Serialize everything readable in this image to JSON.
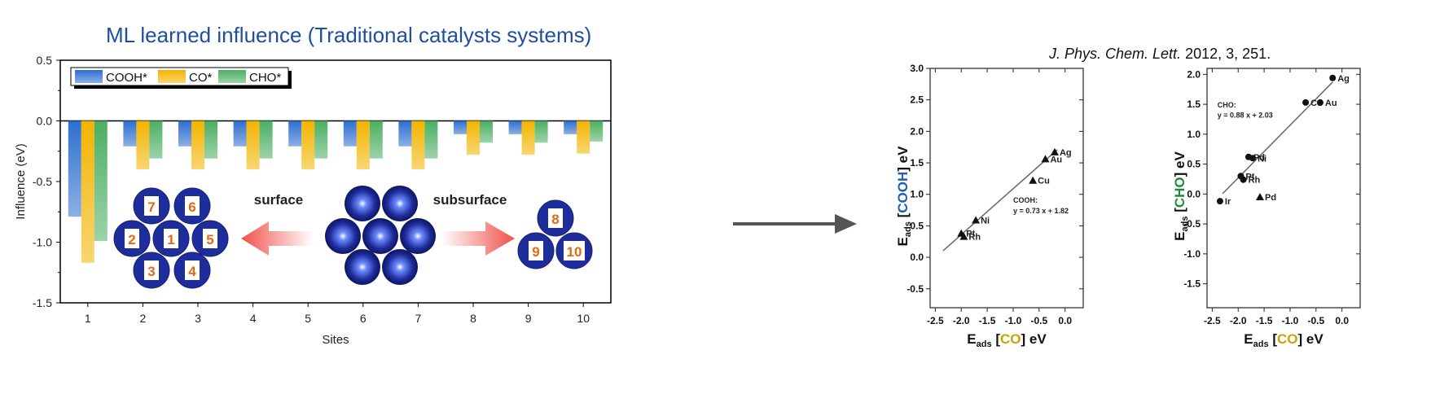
{
  "header": {
    "left_title": "ML learned influence (Traditional catalysts systems)",
    "reference_journal": "J. Phys. Chem. Lett.",
    "reference_details": " 2012, 3, 251."
  },
  "colors": {
    "cooh": "#2e6fcf",
    "co": "#f3b400",
    "cho": "#4caf63",
    "cooh_label": "#1f5fb5",
    "co_label": "#c8a400",
    "cho_label": "#1f8a3a",
    "arrow_red": "#f0504a",
    "sphere": "#1e2d9c",
    "site_number": "#e06a12"
  },
  "inset": {
    "surface_label": "surface",
    "subsurface_label": "subsurface",
    "surface_sites": [
      "7",
      "6",
      "2",
      "1",
      "5",
      "3",
      "4"
    ],
    "subsurface_sites": [
      "8",
      "9",
      "10"
    ]
  },
  "chart_data": [
    {
      "type": "bar",
      "title": "",
      "xlabel": "Sites",
      "ylabel": "Influence (eV)",
      "categories": [
        "1",
        "2",
        "3",
        "4",
        "5",
        "6",
        "7",
        "8",
        "9",
        "10"
      ],
      "ylim": [
        -1.5,
        0.5
      ],
      "yticks": [
        "0.5",
        "0.0",
        "-0.5",
        "-1.0",
        "-1.5"
      ],
      "legend_position": "top-left",
      "grid": false,
      "series": [
        {
          "name": "COOH*",
          "values": [
            -0.79,
            -0.21,
            -0.21,
            -0.21,
            -0.21,
            -0.21,
            -0.21,
            -0.11,
            -0.11,
            -0.11
          ]
        },
        {
          "name": "CO*",
          "values": [
            -1.17,
            -0.4,
            -0.4,
            -0.4,
            -0.4,
            -0.4,
            -0.4,
            -0.28,
            -0.28,
            -0.27
          ]
        },
        {
          "name": "CHO*",
          "values": [
            -0.99,
            -0.31,
            -0.31,
            -0.31,
            -0.31,
            -0.31,
            -0.31,
            -0.18,
            -0.18,
            -0.17
          ]
        }
      ]
    },
    {
      "type": "scatter",
      "xlabel_main": "E",
      "xlabel_sub": "ads",
      "xlabel_bracket": "CO",
      "xlabel_unit": "eV",
      "ylabel_main": "E",
      "ylabel_sub": "ads",
      "ylabel_bracket": "COOH",
      "ylabel_unit": "eV",
      "xlim": [
        -2.6,
        0.35
      ],
      "ylim": [
        -0.8,
        3.0
      ],
      "xticks": [
        "-2.5",
        "-2.0",
        "-1.5",
        "-1.0",
        "-0.5",
        "0.0"
      ],
      "yticks": [
        "3.0",
        "2.5",
        "2.0",
        "1.5",
        "1.0",
        "0.5",
        "0.0",
        "-0.5"
      ],
      "marker": "triangle",
      "points": [
        {
          "label": "Ag",
          "x": -0.2,
          "y": 1.67
        },
        {
          "label": "Au",
          "x": -0.38,
          "y": 1.56
        },
        {
          "label": "Cu",
          "x": -0.62,
          "y": 1.22
        },
        {
          "label": "Ni",
          "x": -1.72,
          "y": 0.59
        },
        {
          "label": "Pt",
          "x": -2.0,
          "y": 0.38
        },
        {
          "label": "Rh",
          "x": -1.95,
          "y": 0.33
        }
      ],
      "fit_label": "COOH:",
      "fit_equation": "y = 0.73 x + 1.82",
      "fit": {
        "slope": 0.73,
        "intercept": 1.82,
        "x_range": [
          -2.35,
          -0.15
        ]
      }
    },
    {
      "type": "scatter",
      "xlabel_main": "E",
      "xlabel_sub": "ads",
      "xlabel_bracket": "CO",
      "xlabel_unit": "eV",
      "ylabel_main": "E",
      "ylabel_sub": "ads",
      "ylabel_bracket": "CHO",
      "ylabel_unit": "eV",
      "xlim": [
        -2.6,
        0.35
      ],
      "ylim": [
        -1.9,
        2.1
      ],
      "xticks": [
        "-2.5",
        "-2.0",
        "-1.5",
        "-1.0",
        "-0.5",
        "0.0"
      ],
      "yticks": [
        "2.0",
        "1.5",
        "1.0",
        "0.5",
        "0.0",
        "-0.5",
        "-1.0",
        "-1.5"
      ],
      "points": [
        {
          "label": "Ag",
          "x": -0.18,
          "y": 1.94,
          "marker": "circle"
        },
        {
          "label": "Cu",
          "x": -0.7,
          "y": 1.53,
          "marker": "circle"
        },
        {
          "label": "Au",
          "x": -0.42,
          "y": 1.53,
          "marker": "circle"
        },
        {
          "label": "Pd",
          "x": -1.8,
          "y": 0.62,
          "marker": "circle"
        },
        {
          "label": "Ni",
          "x": -1.72,
          "y": 0.6,
          "marker": "circle"
        },
        {
          "label": "Pt",
          "x": -1.95,
          "y": 0.3,
          "marker": "circle"
        },
        {
          "label": "Rh",
          "x": -1.9,
          "y": 0.24,
          "marker": "circle"
        },
        {
          "label": "Pd",
          "x": -1.58,
          "y": -0.05,
          "marker": "triangle"
        },
        {
          "label": "Ir",
          "x": -2.35,
          "y": -0.12,
          "marker": "circle"
        }
      ],
      "fit_label": "CHO:",
      "fit_equation": "y = 0.88 x + 2.03",
      "fit": {
        "slope": 0.88,
        "intercept": 2.03,
        "x_range": [
          -2.3,
          -0.18
        ]
      }
    }
  ]
}
